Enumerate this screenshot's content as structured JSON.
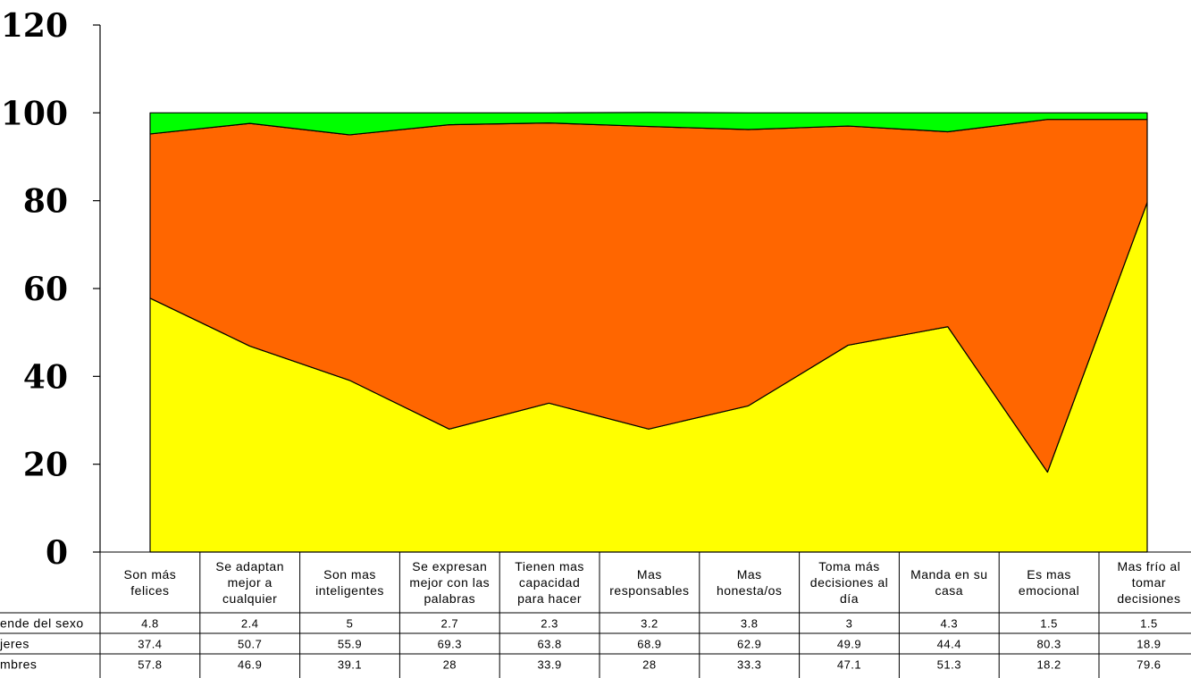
{
  "chart_data": {
    "type": "area",
    "stacked": true,
    "ylim": [
      0,
      120
    ],
    "yticks": [
      0,
      20,
      40,
      60,
      80,
      100,
      120
    ],
    "categories": [
      "Son más felices",
      "Se adaptan mejor a cualquier",
      "Son mas inteligentes",
      "Se expresan mejor con las palabras",
      "Tienen mas capacidad para hacer",
      "Mas responsables",
      "Mas honesta/os",
      "Toma más decisiones al día",
      "Manda en su casa",
      "Es mas emocional",
      "Mas frío al tomar decisiones"
    ],
    "category_lines": [
      [
        "Son más",
        "felices"
      ],
      [
        "Se adaptan",
        "mejor a",
        "cualquier"
      ],
      [
        "Son mas",
        "inteligentes"
      ],
      [
        "Se expresan",
        "mejor con las",
        "palabras"
      ],
      [
        "Tienen mas",
        "capacidad",
        "para hacer"
      ],
      [
        "Mas",
        "responsables"
      ],
      [
        "Mas",
        "honesta/os"
      ],
      [
        "Toma más",
        "decisiones al",
        "día"
      ],
      [
        "Manda en su",
        "casa"
      ],
      [
        "Es mas",
        "emocional"
      ],
      [
        "Mas frío al",
        "tomar",
        "decisiones"
      ]
    ],
    "series": [
      {
        "name": "mbres",
        "color": "#ffff00",
        "values": [
          57.8,
          46.9,
          39.1,
          28,
          33.9,
          28,
          33.3,
          47.1,
          51.3,
          18.2,
          79.6
        ]
      },
      {
        "name": "jeres",
        "color": "#ff6600",
        "values": [
          37.4,
          50.7,
          55.9,
          69.3,
          63.8,
          68.9,
          62.9,
          49.9,
          44.4,
          80.3,
          18.9
        ]
      },
      {
        "name": "ende del sexo",
        "color": "#00ff00",
        "values": [
          4.8,
          2.4,
          5,
          2.7,
          2.3,
          3.2,
          3.8,
          3,
          4.3,
          1.5,
          1.5
        ]
      }
    ],
    "table_row_order": [
      2,
      1,
      0
    ],
    "table_cells": [
      [
        "4.8",
        "2.4",
        "5",
        "2.7",
        "2.3",
        "3.2",
        "3.8",
        "3",
        "4.3",
        "1.5",
        "1.5"
      ],
      [
        "37.4",
        "50.7",
        "55.9",
        "69.3",
        "63.8",
        "68.9",
        "62.9",
        "49.9",
        "44.4",
        "80.3",
        "18.9"
      ],
      [
        "57.8",
        "46.9",
        "39.1",
        "28",
        "33.9",
        "28",
        "33.3",
        "47.1",
        "51.3",
        "18.2",
        "79.6"
      ]
    ]
  }
}
